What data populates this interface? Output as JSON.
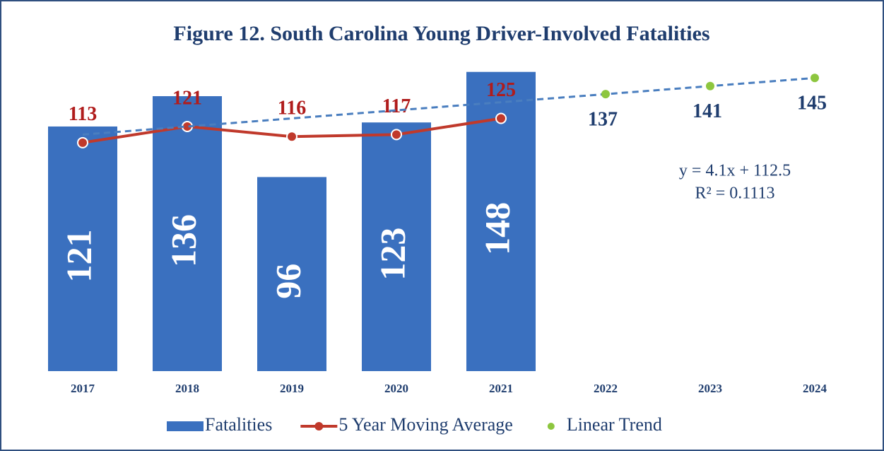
{
  "chart_data": {
    "type": "bar",
    "title": "Figure 12. South Carolina Young Driver-Involved  Fatalities",
    "categories": [
      "2017",
      "2018",
      "2019",
      "2020",
      "2021",
      "2022",
      "2023",
      "2024"
    ],
    "ylim": [
      0,
      150
    ],
    "series": [
      {
        "name": "Fatalities",
        "type": "bar",
        "color": "#3a70bf",
        "values": [
          121,
          136,
          96,
          123,
          148,
          null,
          null,
          null
        ]
      },
      {
        "name": "5 Year Moving Average",
        "type": "line",
        "color": "#c0392b",
        "values": [
          113,
          121,
          116,
          117,
          125,
          null,
          null,
          null
        ]
      },
      {
        "name": "Linear Trend",
        "type": "scatter",
        "color": "#8dc63f",
        "trendline_color": "#4a7ebf",
        "values": [
          null,
          null,
          null,
          null,
          null,
          137,
          141,
          145
        ]
      }
    ],
    "annotations": [
      "y = 4.1x + 112.5",
      "R² = 0.1113"
    ],
    "legend": "bottom"
  }
}
